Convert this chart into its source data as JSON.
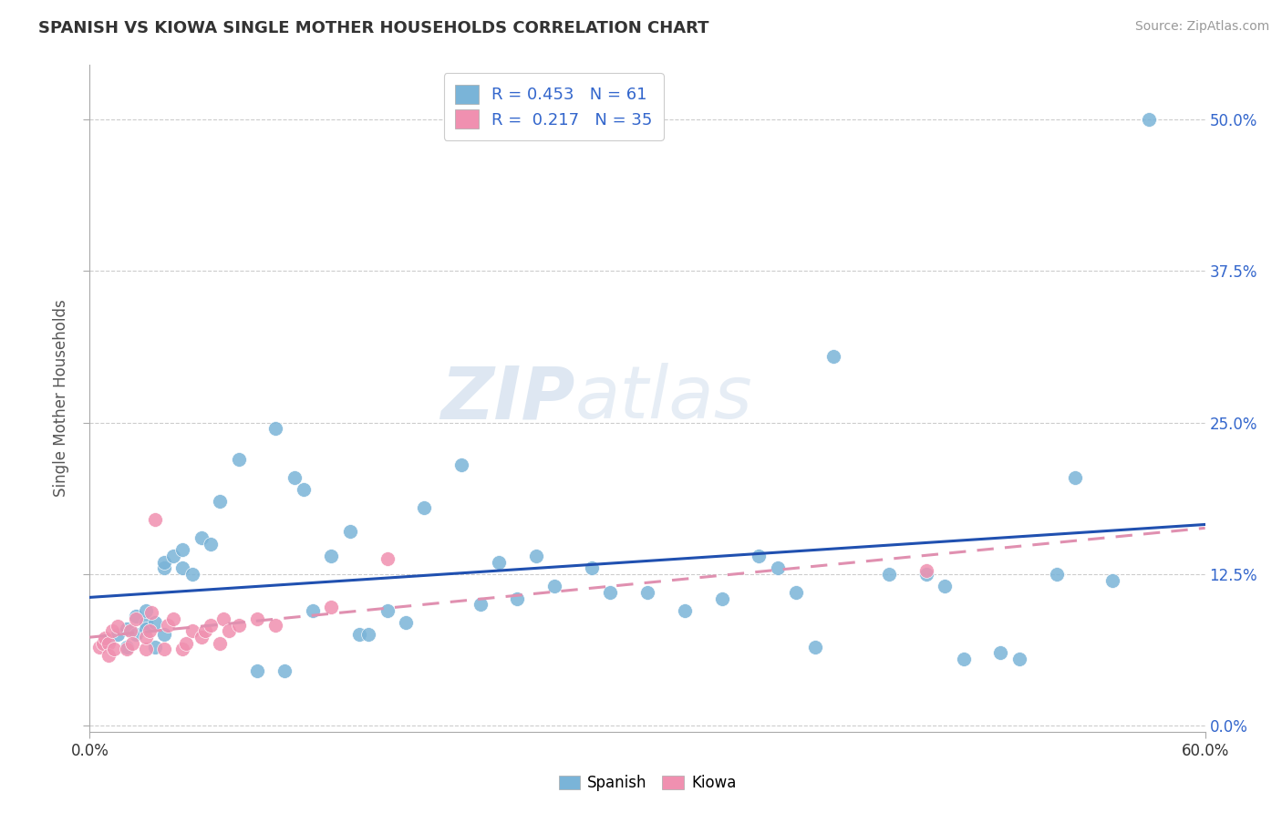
{
  "title": "SPANISH VS KIOWA SINGLE MOTHER HOUSEHOLDS CORRELATION CHART",
  "source": "Source: ZipAtlas.com",
  "ylabel": "Single Mother Households",
  "xlim": [
    0.0,
    0.6
  ],
  "ylim": [
    -0.005,
    0.545
  ],
  "xticks": [
    0.0,
    0.6
  ],
  "xticklabels": [
    "0.0%",
    "60.0%"
  ],
  "yticks": [
    0.0,
    0.125,
    0.25,
    0.375,
    0.5
  ],
  "yticklabels_right": [
    "0.0%",
    "12.5%",
    "25.0%",
    "37.5%",
    "50.0%"
  ],
  "legend_label_spanish": "Spanish",
  "legend_label_kiowa": "Kiowa",
  "spanish_color": "#7ab4d8",
  "kiowa_color": "#f090b0",
  "regression_spanish_color": "#2050b0",
  "regression_kiowa_color": "#e090b0",
  "watermark_zip": "ZIP",
  "watermark_atlas": "atlas",
  "background_color": "#ffffff",
  "grid_color": "#cccccc",
  "spanish_R": 0.453,
  "spanish_N": 61,
  "kiowa_R": 0.217,
  "kiowa_N": 35,
  "spanish_x": [
    0.01,
    0.015,
    0.02,
    0.02,
    0.025,
    0.025,
    0.03,
    0.03,
    0.03,
    0.035,
    0.035,
    0.04,
    0.04,
    0.04,
    0.045,
    0.05,
    0.05,
    0.055,
    0.06,
    0.065,
    0.07,
    0.08,
    0.09,
    0.1,
    0.105,
    0.11,
    0.115,
    0.12,
    0.13,
    0.14,
    0.145,
    0.15,
    0.16,
    0.17,
    0.18,
    0.2,
    0.21,
    0.22,
    0.23,
    0.24,
    0.25,
    0.27,
    0.28,
    0.3,
    0.32,
    0.34,
    0.36,
    0.37,
    0.38,
    0.39,
    0.4,
    0.43,
    0.45,
    0.46,
    0.47,
    0.49,
    0.5,
    0.52,
    0.53,
    0.55,
    0.57
  ],
  "spanish_y": [
    0.07,
    0.075,
    0.08,
    0.065,
    0.09,
    0.075,
    0.085,
    0.08,
    0.095,
    0.085,
    0.065,
    0.13,
    0.135,
    0.075,
    0.14,
    0.145,
    0.13,
    0.125,
    0.155,
    0.15,
    0.185,
    0.22,
    0.045,
    0.245,
    0.045,
    0.205,
    0.195,
    0.095,
    0.14,
    0.16,
    0.075,
    0.075,
    0.095,
    0.085,
    0.18,
    0.215,
    0.1,
    0.135,
    0.105,
    0.14,
    0.115,
    0.13,
    0.11,
    0.11,
    0.095,
    0.105,
    0.14,
    0.13,
    0.11,
    0.065,
    0.305,
    0.125,
    0.125,
    0.115,
    0.055,
    0.06,
    0.055,
    0.125,
    0.205,
    0.12,
    0.5
  ],
  "kiowa_x": [
    0.005,
    0.007,
    0.008,
    0.01,
    0.01,
    0.012,
    0.013,
    0.015,
    0.02,
    0.022,
    0.023,
    0.025,
    0.03,
    0.03,
    0.032,
    0.033,
    0.035,
    0.04,
    0.042,
    0.045,
    0.05,
    0.052,
    0.055,
    0.06,
    0.062,
    0.065,
    0.07,
    0.072,
    0.075,
    0.08,
    0.09,
    0.1,
    0.13,
    0.16,
    0.45
  ],
  "kiowa_y": [
    0.065,
    0.068,
    0.072,
    0.068,
    0.058,
    0.078,
    0.063,
    0.082,
    0.063,
    0.078,
    0.068,
    0.088,
    0.063,
    0.073,
    0.078,
    0.093,
    0.17,
    0.063,
    0.083,
    0.088,
    0.063,
    0.068,
    0.078,
    0.073,
    0.078,
    0.083,
    0.068,
    0.088,
    0.078,
    0.083,
    0.088,
    0.083,
    0.098,
    0.138,
    0.128
  ]
}
